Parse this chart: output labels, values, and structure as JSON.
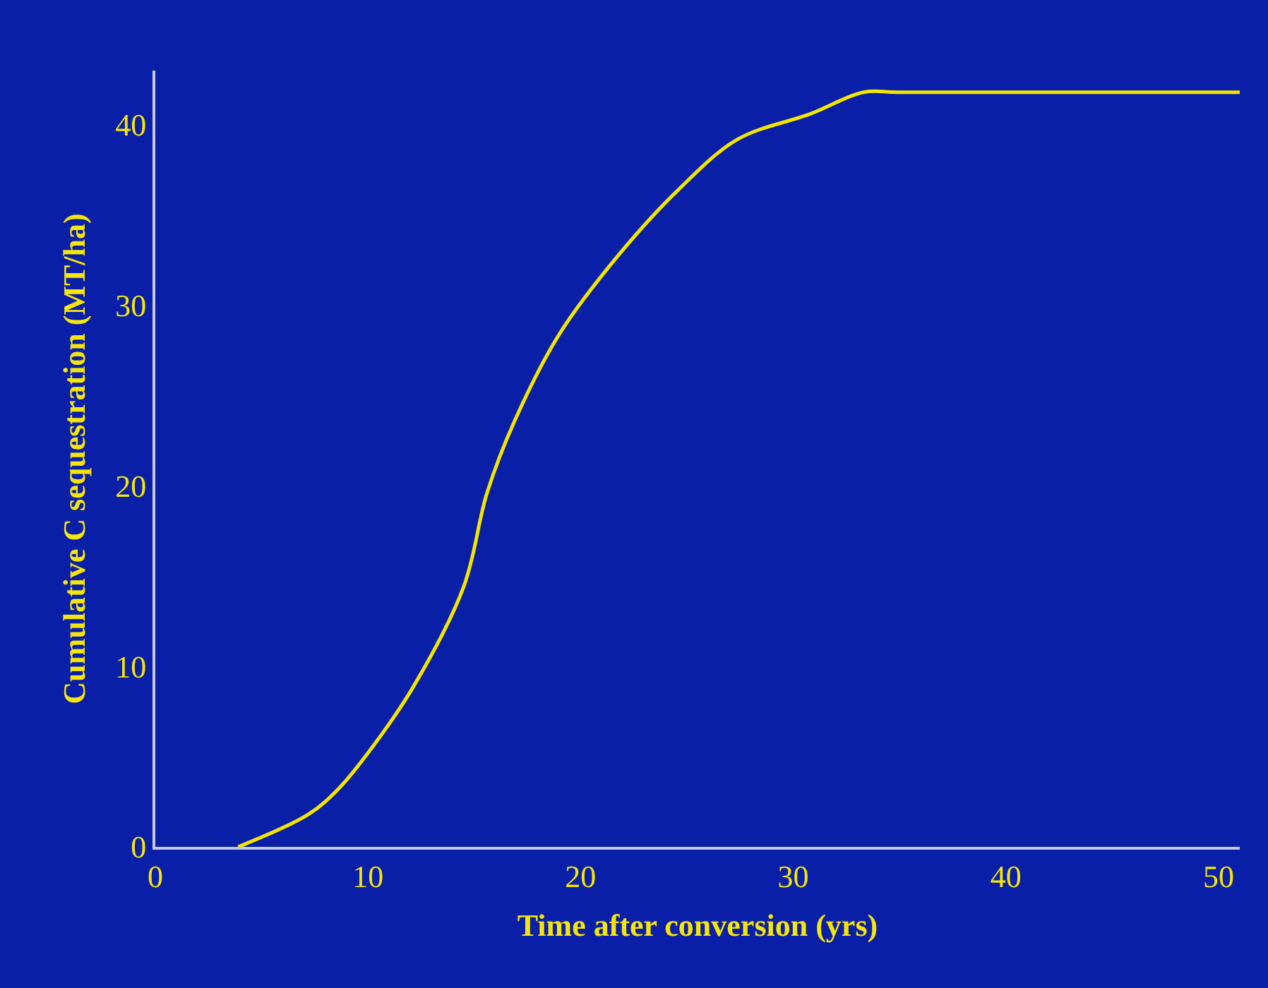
{
  "chart_data": {
    "type": "line",
    "xlabel": "Time after conversion (yrs)",
    "ylabel": "Cumulative C sequestration (MT/ha)",
    "x": [
      3.9,
      7.2,
      8.6,
      10,
      12.1,
      14.5,
      15.6,
      16.9,
      19,
      21.8,
      24.6,
      27.4,
      30.8,
      33.3,
      35,
      51
    ],
    "series": [
      {
        "color": "#f2e600",
        "values": [
          0,
          1.8,
          3.2,
          5.2,
          8.8,
          14.4,
          19.6,
          23.6,
          28.4,
          32.8,
          36.4,
          39.2,
          40.6,
          41.8,
          41.8,
          41.8
        ]
      }
    ],
    "xlim": [
      0,
      51
    ],
    "xticks": [
      0,
      10,
      20,
      30,
      40,
      50
    ],
    "ylim": [
      0,
      43
    ],
    "yticks": [
      0,
      10,
      20,
      30,
      40
    ],
    "grid": false,
    "legend": false,
    "marker": "none",
    "line_style": "solid"
  }
}
